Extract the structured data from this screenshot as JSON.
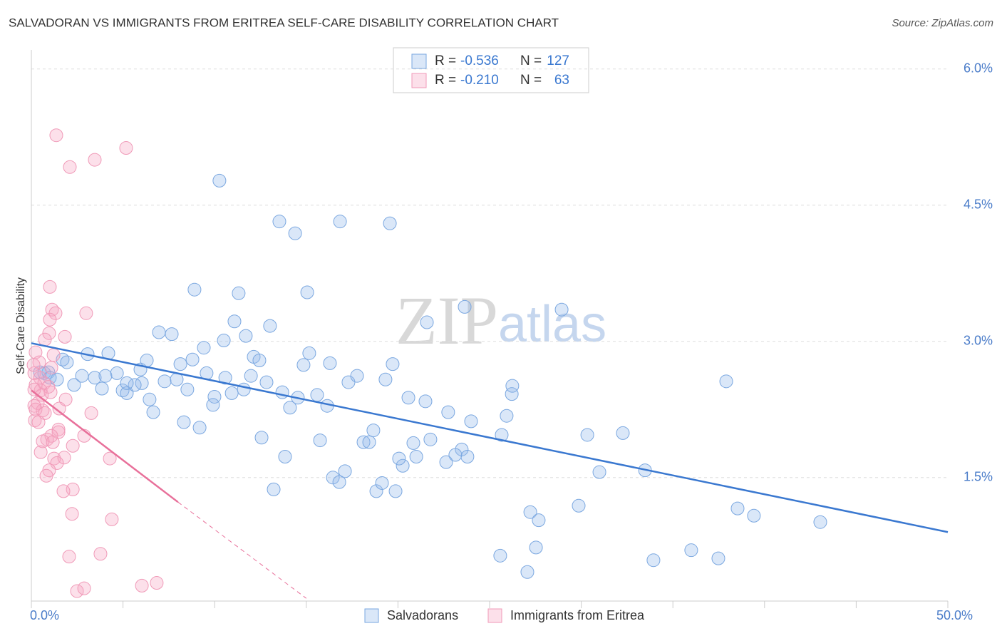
{
  "chart_data": {
    "type": "scatter",
    "title": "SALVADORAN VS IMMIGRANTS FROM ERITREA SELF-CARE DISABILITY CORRELATION CHART",
    "source": "Source: ZipAtlas.com",
    "ylabel": "Self-Care Disability",
    "watermark": {
      "prefix": "ZIP",
      "suffix": "atlas"
    },
    "xlim": [
      0,
      50
    ],
    "ylim": [
      0.14,
      6.21
    ],
    "xticks": [
      {
        "value": 0,
        "label": "0.0%"
      },
      {
        "value": 50,
        "label": "50.0%"
      }
    ],
    "x_minor_ticks": [
      5,
      10,
      15,
      20,
      25,
      30,
      35,
      40,
      45
    ],
    "yticks": [
      {
        "value": 1.5,
        "label": "1.5%"
      },
      {
        "value": 3.0,
        "label": "3.0%"
      },
      {
        "value": 4.5,
        "label": "4.5%"
      },
      {
        "value": 6.0,
        "label": "6.0%"
      }
    ],
    "grid": true,
    "stat_labels": {
      "r": "R =",
      "n": "N ="
    },
    "series": [
      {
        "name": "Salvadorans",
        "color": "#7aa7e0",
        "r": -0.536,
        "n": 127,
        "x": [
          10.26,
          13.53,
          14.39,
          16.84,
          19.56,
          8.9,
          11.31,
          15.05,
          11.08,
          13.02,
          11.7,
          21.58,
          23.64,
          28.93,
          6.96,
          7.66,
          9.41,
          8.79,
          10.5,
          12.13,
          15.16,
          16.29,
          19.71,
          12.44,
          14.85,
          8.13,
          37.91,
          1.71,
          1.94,
          3.07,
          4.2,
          5.95,
          4.67,
          6.3,
          6.03,
          7.27,
          7.93,
          8.51,
          9.56,
          10.58,
          11.98,
          12.83,
          13.69,
          14.54,
          15.59,
          16.14,
          17.3,
          17.77,
          19.32,
          20.57,
          21.5,
          22.74,
          23.99,
          25.93,
          26.21,
          26.24,
          0.7,
          0.93,
          1.01,
          1.4,
          2.33,
          2.76,
          3.46,
          4.04,
          3.85,
          4.98,
          5.21,
          5.64,
          6.45,
          6.65,
          5.21,
          9.99,
          9.91,
          10.93,
          11.59,
          14.11,
          8.32,
          9.18,
          12.56,
          15.75,
          18.12,
          18.43,
          18.66,
          20.84,
          21.0,
          21.77,
          23.48,
          23.79,
          23.13,
          22.63,
          20.26,
          20.06,
          13.84,
          17.11,
          16.45,
          16.8,
          13.22,
          18.82,
          19.13,
          19.87,
          25.66,
          30.33,
          32.27,
          30.99,
          33.48,
          27.22,
          27.68,
          29.86,
          38.53,
          39.42,
          43.04,
          27.53,
          25.58,
          27.06,
          33.94,
          36.0,
          37.48,
          0.47
        ],
        "values": [
          4.77,
          4.32,
          4.19,
          4.32,
          4.3,
          3.57,
          3.53,
          3.54,
          3.22,
          3.17,
          3.06,
          3.21,
          3.38,
          3.35,
          3.1,
          3.08,
          2.93,
          2.8,
          3.01,
          2.83,
          2.87,
          2.76,
          2.75,
          2.79,
          2.74,
          2.75,
          2.56,
          2.8,
          2.77,
          2.86,
          2.87,
          2.69,
          2.65,
          2.79,
          2.54,
          2.56,
          2.58,
          2.47,
          2.65,
          2.6,
          2.62,
          2.55,
          2.44,
          2.38,
          2.41,
          2.29,
          2.55,
          2.62,
          2.58,
          2.38,
          2.34,
          2.22,
          2.12,
          2.18,
          2.42,
          2.51,
          2.65,
          2.66,
          2.6,
          2.58,
          2.52,
          2.62,
          2.6,
          2.62,
          2.48,
          2.46,
          2.43,
          2.52,
          2.36,
          2.22,
          2.54,
          2.39,
          2.3,
          2.43,
          2.47,
          2.27,
          2.11,
          2.05,
          1.94,
          1.91,
          1.89,
          1.89,
          2.02,
          1.88,
          1.73,
          1.92,
          1.81,
          1.73,
          1.75,
          1.67,
          1.63,
          1.71,
          1.73,
          1.57,
          1.5,
          1.45,
          1.37,
          1.35,
          1.44,
          1.35,
          1.97,
          1.97,
          1.99,
          1.56,
          1.58,
          1.12,
          1.03,
          1.19,
          1.16,
          1.08,
          1.01,
          0.73,
          0.64,
          0.46,
          0.59,
          0.7,
          0.61,
          2.66
        ]
      },
      {
        "name": "Immigrants from Eritrea",
        "color": "#f09ab8",
        "r": -0.21,
        "n": 63,
        "x": [
          1.36,
          5.17,
          3.46,
          2.1,
          1.01,
          1.13,
          1.32,
          2.99,
          1.01,
          0.97,
          1.83,
          0.74,
          0.23,
          1.21,
          0.43,
          1.09,
          0.16,
          0.47,
          0.7,
          0.23,
          0.93,
          0.51,
          0.58,
          1.05,
          1.87,
          0.35,
          0.16,
          0.62,
          0.23,
          0.74,
          1.52,
          3.27,
          0.19,
          0.39,
          1.48,
          1.48,
          1.09,
          0.86,
          2.88,
          0.62,
          1.17,
          2.26,
          0.51,
          1.24,
          1.79,
          4.28,
          1.4,
          0.97,
          0.82,
          2.26,
          1.75,
          2.22,
          4.39,
          2.06,
          3.77,
          2.49,
          2.88,
          6.03,
          6.84,
          0.12,
          0.16
        ],
        "values": [
          5.27,
          5.13,
          5.0,
          4.92,
          3.6,
          3.35,
          3.31,
          3.31,
          3.24,
          3.09,
          3.05,
          3.02,
          2.88,
          2.85,
          2.77,
          2.71,
          2.65,
          2.6,
          2.54,
          2.52,
          2.5,
          2.46,
          2.41,
          2.44,
          2.36,
          2.32,
          2.29,
          2.24,
          2.25,
          2.21,
          2.26,
          2.21,
          2.13,
          2.11,
          2.03,
          2.0,
          1.96,
          1.92,
          1.96,
          1.9,
          1.89,
          1.85,
          1.78,
          1.71,
          1.72,
          1.71,
          1.66,
          1.58,
          1.52,
          1.37,
          1.35,
          1.1,
          1.04,
          0.63,
          0.66,
          0.25,
          0.28,
          0.31,
          0.34,
          2.74,
          2.47
        ]
      }
    ],
    "trends": [
      {
        "color": "#3a78d0",
        "x": [
          0,
          50
        ],
        "values": [
          2.98,
          0.9
        ]
      },
      {
        "color": "#e8709a",
        "x": [
          0,
          8
        ],
        "values": [
          2.46,
          1.23
        ]
      },
      {
        "color": "#e8709a",
        "x": [
          8,
          15
        ],
        "values": [
          1.23,
          0.17
        ],
        "dashed": true
      }
    ]
  }
}
